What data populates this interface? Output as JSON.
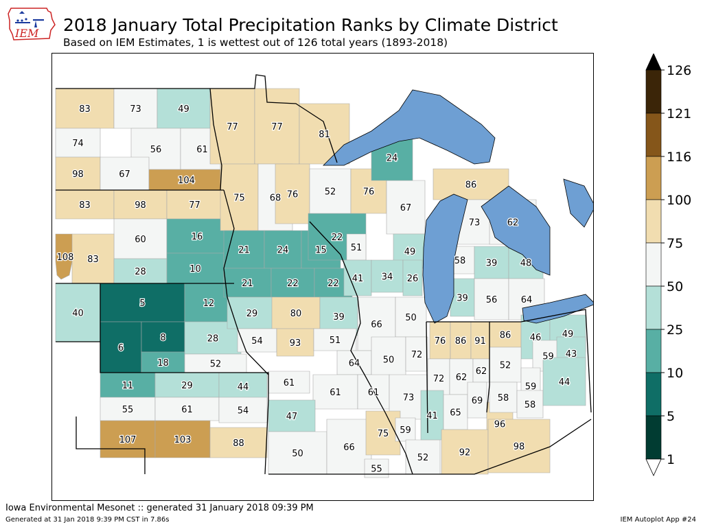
{
  "header": {
    "logo_text": "IEM",
    "title": "2018 January Total Precipitation Ranks by Climate District",
    "subtitle": "Based on IEM Estimates, 1 is wettest out of 126 total years (1893-2018)"
  },
  "footer": {
    "main": "Iowa Environmental Mesonet :: generated 31 January 2018 09:39 PM",
    "small": "Generated at 31 Jan 2018 9:39 PM CST in 7.86s",
    "app": "IEM Autoplot App #24"
  },
  "legend": {
    "labels": [
      "126",
      "121",
      "116",
      "100",
      "75",
      "50",
      "25",
      "10",
      "5",
      "1"
    ],
    "colors": [
      "#3b2508",
      "#85561a",
      "#cc9e52",
      "#f1ddb0",
      "#f4f6f5",
      "#b4e0d8",
      "#58afa4",
      "#0f6e66",
      "#013c32"
    ],
    "over_color": "#000000",
    "under_color": "#ffffff"
  },
  "map": {
    "water_color": "#6e9fd3",
    "districts": [
      {
        "rank": "83"
      },
      {
        "rank": "73"
      },
      {
        "rank": "49"
      },
      {
        "rank": "74"
      },
      {
        "rank": "56"
      },
      {
        "rank": "61"
      },
      {
        "rank": "98"
      },
      {
        "rank": "67"
      },
      {
        "rank": "104"
      },
      {
        "rank": "83"
      },
      {
        "rank": "98"
      },
      {
        "rank": "77"
      },
      {
        "rank": "60"
      },
      {
        "rank": "16"
      },
      {
        "rank": "108"
      },
      {
        "rank": "83"
      },
      {
        "rank": "28"
      },
      {
        "rank": "10"
      },
      {
        "rank": "40"
      },
      {
        "rank": "5"
      },
      {
        "rank": "12"
      },
      {
        "rank": "6"
      },
      {
        "rank": "8"
      },
      {
        "rank": "18"
      },
      {
        "rank": "28"
      },
      {
        "rank": "52"
      },
      {
        "rank": "11"
      },
      {
        "rank": "29"
      },
      {
        "rank": "44"
      },
      {
        "rank": "55"
      },
      {
        "rank": "61"
      },
      {
        "rank": "54"
      },
      {
        "rank": "107"
      },
      {
        "rank": "103"
      },
      {
        "rank": "88"
      },
      {
        "rank": "77"
      },
      {
        "rank": "77"
      },
      {
        "rank": "81"
      },
      {
        "rank": "75"
      },
      {
        "rank": "68"
      },
      {
        "rank": "76"
      },
      {
        "rank": "21"
      },
      {
        "rank": "24"
      },
      {
        "rank": "15"
      },
      {
        "rank": "22"
      },
      {
        "rank": "21"
      },
      {
        "rank": "22"
      },
      {
        "rank": "22"
      },
      {
        "rank": "29"
      },
      {
        "rank": "80"
      },
      {
        "rank": "39"
      },
      {
        "rank": "54"
      },
      {
        "rank": "93"
      },
      {
        "rank": "51"
      },
      {
        "rank": "52"
      },
      {
        "rank": "76"
      },
      {
        "rank": "67"
      },
      {
        "rank": "24"
      },
      {
        "rank": "51"
      },
      {
        "rank": "49"
      },
      {
        "rank": "41"
      },
      {
        "rank": "34"
      },
      {
        "rank": "26"
      },
      {
        "rank": "86"
      },
      {
        "rank": "73"
      },
      {
        "rank": "62"
      },
      {
        "rank": "58"
      },
      {
        "rank": "39"
      },
      {
        "rank": "48"
      },
      {
        "rank": "39"
      },
      {
        "rank": "56"
      },
      {
        "rank": "64"
      },
      {
        "rank": "66"
      },
      {
        "rank": "50"
      },
      {
        "rank": "64"
      },
      {
        "rank": "50"
      },
      {
        "rank": "72"
      },
      {
        "rank": "61"
      },
      {
        "rank": "61"
      },
      {
        "rank": "61"
      },
      {
        "rank": "73"
      },
      {
        "rank": "47"
      },
      {
        "rank": "50"
      },
      {
        "rank": "66"
      },
      {
        "rank": "55"
      },
      {
        "rank": "75"
      },
      {
        "rank": "59"
      },
      {
        "rank": "52"
      },
      {
        "rank": "76"
      },
      {
        "rank": "86"
      },
      {
        "rank": "91"
      },
      {
        "rank": "72"
      },
      {
        "rank": "62"
      },
      {
        "rank": "62"
      },
      {
        "rank": "41"
      },
      {
        "rank": "65"
      },
      {
        "rank": "69"
      },
      {
        "rank": "96"
      },
      {
        "rank": "92"
      },
      {
        "rank": "98"
      },
      {
        "rank": "86"
      },
      {
        "rank": "46"
      },
      {
        "rank": "49"
      },
      {
        "rank": "52"
      },
      {
        "rank": "59"
      },
      {
        "rank": "43"
      },
      {
        "rank": "59"
      },
      {
        "rank": "58"
      },
      {
        "rank": "58"
      },
      {
        "rank": "44"
      }
    ]
  }
}
